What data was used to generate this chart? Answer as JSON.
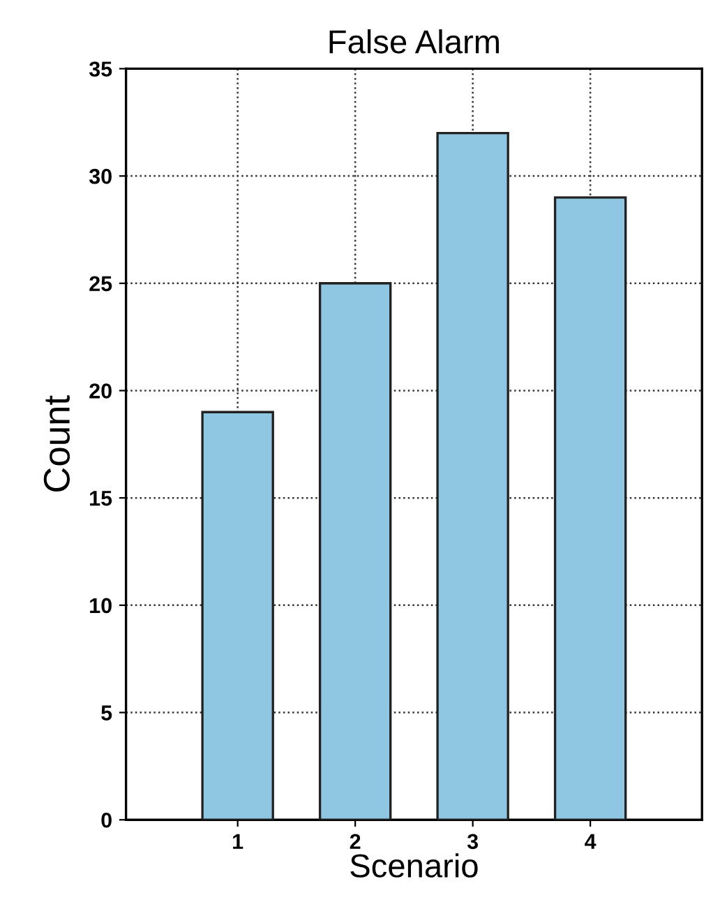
{
  "chart_data": {
    "type": "bar",
    "title": "False Alarm",
    "xlabel": "Scenario",
    "ylabel": "Count",
    "categories": [
      "1",
      "2",
      "3",
      "4"
    ],
    "values": [
      19,
      25,
      32,
      29
    ],
    "color": "#8fc6e2",
    "ylim": [
      0,
      35
    ],
    "yticks": [
      0,
      5,
      10,
      15,
      20,
      25,
      30,
      35
    ],
    "grid": true,
    "line_style": "dotted"
  }
}
